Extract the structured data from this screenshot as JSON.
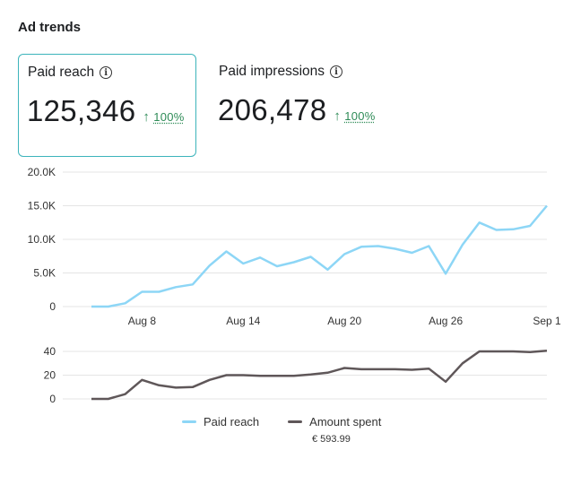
{
  "header": {
    "title": "Ad trends"
  },
  "metrics": [
    {
      "label": "Paid reach",
      "value": "125,346",
      "change": "100%",
      "selected": true
    },
    {
      "label": "Paid impressions",
      "value": "206,478",
      "change": "100%",
      "selected": false
    }
  ],
  "colors": {
    "accent": "#3cb4bb",
    "positive": "#2e8b57",
    "reach_line": "#8dd6f6",
    "spent_line": "#5f5759"
  },
  "legend": {
    "reach_label": "Paid reach",
    "spent_label": "Amount spent",
    "spent_total": "€ 593.99"
  },
  "chart_data": [
    {
      "type": "line",
      "y_ticks": [
        "20.0K",
        "15.0K",
        "10.0K",
        "5.0K",
        "0"
      ],
      "ylim": [
        0,
        20000
      ],
      "x_tick_labels": [
        {
          "day": 3,
          "label": "Aug 8"
        },
        {
          "day": 9,
          "label": "Aug 14"
        },
        {
          "day": 15,
          "label": "Aug 20"
        },
        {
          "day": 21,
          "label": "Aug 26"
        },
        {
          "day": 27,
          "label": "Sep 1"
        }
      ],
      "x_domain": [
        0,
        27
      ],
      "grid": true,
      "series": [
        {
          "name": "Paid reach",
          "values": [
            0,
            0,
            500,
            2200,
            2200,
            2900,
            3300,
            6100,
            8200,
            6400,
            7300,
            6000,
            6600,
            7400,
            5500,
            7800,
            8900,
            9000,
            8600,
            8000,
            9000,
            4900,
            9200,
            12500,
            11400,
            11500,
            12000,
            15000
          ]
        }
      ]
    },
    {
      "type": "line",
      "y_ticks": [
        "40",
        "20",
        "0"
      ],
      "ylim": [
        0,
        40
      ],
      "x_domain": [
        0,
        27
      ],
      "grid": true,
      "series": [
        {
          "name": "Amount spent",
          "values": [
            0,
            0,
            4,
            16,
            11.5,
            9.5,
            10,
            16,
            20,
            20,
            19.5,
            19.5,
            19.5,
            20.5,
            22,
            26,
            25,
            25,
            25,
            24.5,
            25.5,
            14.5,
            30,
            40,
            40,
            40,
            39.5,
            40.5
          ]
        }
      ]
    }
  ]
}
